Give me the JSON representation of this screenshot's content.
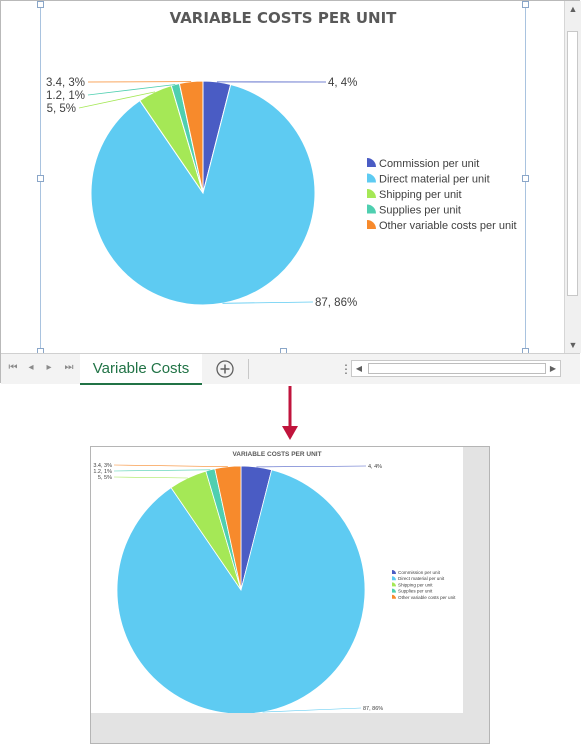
{
  "chart_data": {
    "type": "pie",
    "title": "VARIABLE COSTS PER UNIT",
    "categories": [
      "Commission per unit",
      "Direct material per unit",
      "Shipping per unit",
      "Supplies per unit",
      "Other variable costs per unit"
    ],
    "values": [
      4,
      87,
      5,
      1.2,
      3.4
    ],
    "percent_labels": [
      "4, 4%",
      "87, 86%",
      "5, 5%",
      "1.2, 1%",
      "3.4, 3%"
    ],
    "colors": [
      "#4a5cc4",
      "#5ecbf2",
      "#a5e856",
      "#4fcfb0",
      "#f78a2c"
    ],
    "legend_position": "right"
  },
  "sheet": {
    "tab_label": "Variable Costs"
  },
  "icons": {
    "add_sheet": "plus-circle-icon",
    "arrow": "down-arrow-icon"
  },
  "colors": {
    "excel_green": "#217346",
    "arrow_red": "#c0143c"
  }
}
